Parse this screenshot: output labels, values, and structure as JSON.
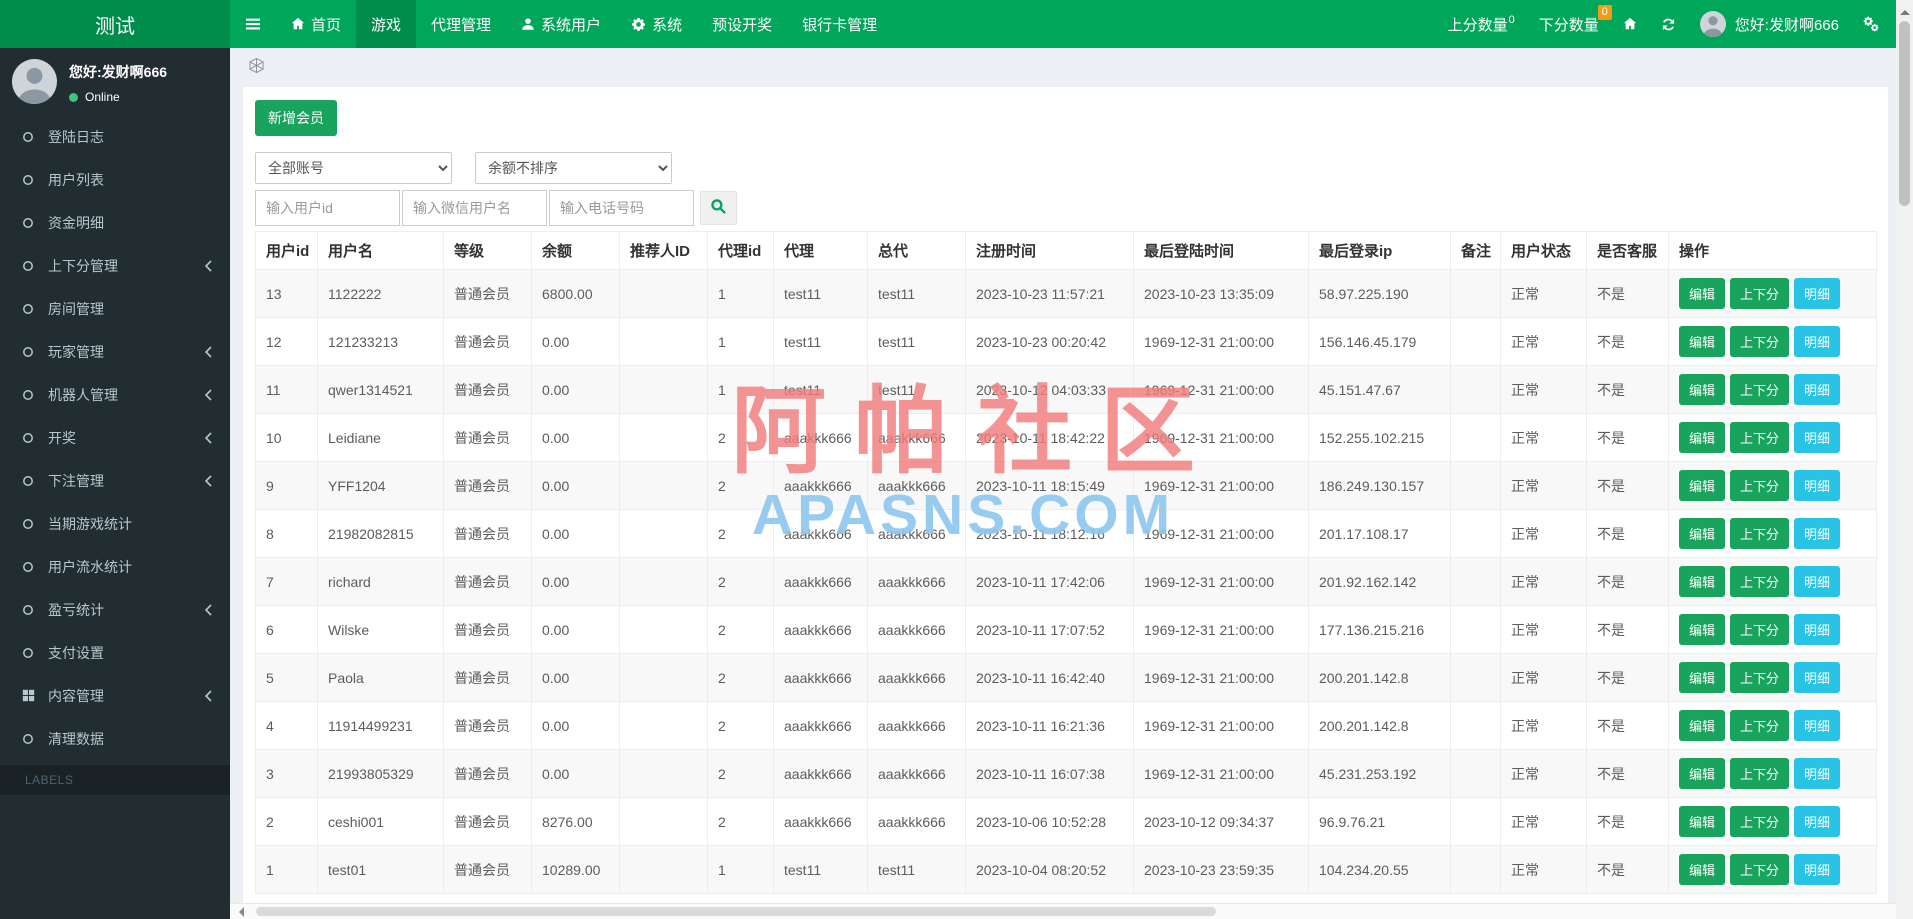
{
  "navbar": {
    "brand": "测试",
    "items": [
      {
        "name": "home",
        "label": "首页",
        "icon": "home-icon",
        "active": false
      },
      {
        "name": "games",
        "label": "游戏",
        "icon": null,
        "active": true
      },
      {
        "name": "agent-manage",
        "label": "代理管理",
        "icon": null,
        "active": false
      },
      {
        "name": "system-users",
        "label": "系统用户",
        "icon": "user-icon",
        "active": false
      },
      {
        "name": "system",
        "label": "系统",
        "icon": "gear-icon",
        "active": false
      },
      {
        "name": "preset-draw",
        "label": "预设开奖",
        "icon": null,
        "active": false
      },
      {
        "name": "bank-card-manage",
        "label": "银行卡管理",
        "icon": null,
        "active": false
      }
    ],
    "right": {
      "up_score_label": "上分数量",
      "up_score_count": "0",
      "down_score_label": "下分数量",
      "down_score_count": "0",
      "greeting": "您好:发财啊666"
    }
  },
  "sidebar": {
    "greeting": "您好:发财啊666",
    "status": "Online",
    "labels_header": "LABELS",
    "items": [
      {
        "name": "login-log",
        "label": "登陆日志",
        "icon": "circle-icon",
        "has_submenu": false
      },
      {
        "name": "user-list",
        "label": "用户列表",
        "icon": "circle-icon",
        "has_submenu": false
      },
      {
        "name": "funds-detail",
        "label": "资金明细",
        "icon": "circle-icon",
        "has_submenu": false
      },
      {
        "name": "updown-manage",
        "label": "上下分管理",
        "icon": "circle-icon",
        "has_submenu": true
      },
      {
        "name": "room-manage",
        "label": "房间管理",
        "icon": "circle-icon",
        "has_submenu": false
      },
      {
        "name": "player-manage",
        "label": "玩家管理",
        "icon": "circle-icon",
        "has_submenu": true
      },
      {
        "name": "robot-manage",
        "label": "机器人管理",
        "icon": "circle-icon",
        "has_submenu": true
      },
      {
        "name": "lottery-draw",
        "label": "开奖",
        "icon": "circle-icon",
        "has_submenu": true
      },
      {
        "name": "bet-manage",
        "label": "下注管理",
        "icon": "circle-icon",
        "has_submenu": true
      },
      {
        "name": "current-game-stats",
        "label": "当期游戏统计",
        "icon": "circle-icon",
        "has_submenu": false
      },
      {
        "name": "user-flow-stats",
        "label": "用户流水统计",
        "icon": "circle-icon",
        "has_submenu": false
      },
      {
        "name": "profit-stats",
        "label": "盈亏统计",
        "icon": "circle-icon",
        "has_submenu": true
      },
      {
        "name": "payment-settings",
        "label": "支付设置",
        "icon": "circle-icon",
        "has_submenu": false
      },
      {
        "name": "content-manage",
        "label": "内容管理",
        "icon": "grid-icon",
        "has_submenu": true
      },
      {
        "name": "clean-data",
        "label": "清理数据",
        "icon": "circle-icon",
        "has_submenu": false
      }
    ]
  },
  "toolbar": {
    "add_member_label": "新增会员",
    "account_filter_value": "全部账号",
    "balance_sort_value": "余额不排序",
    "user_id_placeholder": "输入用户id",
    "wechat_placeholder": "输入微信用户名",
    "phone_placeholder": "输入电话号码",
    "search_icon": "search-icon"
  },
  "table": {
    "columns": [
      "用户id",
      "用户名",
      "等级",
      "余额",
      "推荐人ID",
      "代理id",
      "代理",
      "总代",
      "注册时间",
      "最后登陆时间",
      "最后登录ip",
      "备注",
      "用户状态",
      "是否客服",
      "操作"
    ],
    "action_labels": {
      "edit": "编辑",
      "updown": "上下分",
      "detail": "明细"
    },
    "rows": [
      [
        "13",
        "1122222",
        "普通会员",
        "6800.00",
        "",
        "1",
        "test11",
        "test11",
        "2023-10-23 11:57:21",
        "2023-10-23 13:35:09",
        "58.97.225.190",
        "",
        "正常",
        "不是"
      ],
      [
        "12",
        "121233213",
        "普通会员",
        "0.00",
        "",
        "1",
        "test11",
        "test11",
        "2023-10-23 00:20:42",
        "1969-12-31 21:00:00",
        "156.146.45.179",
        "",
        "正常",
        "不是"
      ],
      [
        "11",
        "qwer1314521",
        "普通会员",
        "0.00",
        "",
        "1",
        "test11",
        "test11",
        "2023-10-12 04:03:33",
        "1969-12-31 21:00:00",
        "45.151.47.67",
        "",
        "正常",
        "不是"
      ],
      [
        "10",
        "Leidiane",
        "普通会员",
        "0.00",
        "",
        "2",
        "aaakkk666",
        "aaakkk666",
        "2023-10-11 18:42:22",
        "1969-12-31 21:00:00",
        "152.255.102.215",
        "",
        "正常",
        "不是"
      ],
      [
        "9",
        "YFF1204",
        "普通会员",
        "0.00",
        "",
        "2",
        "aaakkk666",
        "aaakkk666",
        "2023-10-11 18:15:49",
        "1969-12-31 21:00:00",
        "186.249.130.157",
        "",
        "正常",
        "不是"
      ],
      [
        "8",
        "21982082815",
        "普通会员",
        "0.00",
        "",
        "2",
        "aaakkk666",
        "aaakkk666",
        "2023-10-11 18:12:16",
        "1969-12-31 21:00:00",
        "201.17.108.17",
        "",
        "正常",
        "不是"
      ],
      [
        "7",
        "richard",
        "普通会员",
        "0.00",
        "",
        "2",
        "aaakkk666",
        "aaakkk666",
        "2023-10-11 17:42:06",
        "1969-12-31 21:00:00",
        "201.92.162.142",
        "",
        "正常",
        "不是"
      ],
      [
        "6",
        "Wilske",
        "普通会员",
        "0.00",
        "",
        "2",
        "aaakkk666",
        "aaakkk666",
        "2023-10-11 17:07:52",
        "1969-12-31 21:00:00",
        "177.136.215.216",
        "",
        "正常",
        "不是"
      ],
      [
        "5",
        "Paola",
        "普通会员",
        "0.00",
        "",
        "2",
        "aaakkk666",
        "aaakkk666",
        "2023-10-11 16:42:40",
        "1969-12-31 21:00:00",
        "200.201.142.8",
        "",
        "正常",
        "不是"
      ],
      [
        "4",
        "11914499231",
        "普通会员",
        "0.00",
        "",
        "2",
        "aaakkk666",
        "aaakkk666",
        "2023-10-11 16:21:36",
        "1969-12-31 21:00:00",
        "200.201.142.8",
        "",
        "正常",
        "不是"
      ],
      [
        "3",
        "21993805329",
        "普通会员",
        "0.00",
        "",
        "2",
        "aaakkk666",
        "aaakkk666",
        "2023-10-11 16:07:38",
        "1969-12-31 21:00:00",
        "45.231.253.192",
        "",
        "正常",
        "不是"
      ],
      [
        "2",
        "ceshi001",
        "普通会员",
        "8276.00",
        "",
        "2",
        "aaakkk666",
        "aaakkk666",
        "2023-10-06 10:52:28",
        "2023-10-12 09:34:37",
        "96.9.76.21",
        "",
        "正常",
        "不是"
      ],
      [
        "1",
        "test01",
        "普通会员",
        "10289.00",
        "",
        "1",
        "test11",
        "test11",
        "2023-10-04 08:20:52",
        "2023-10-23 23:59:35",
        "104.234.20.55",
        "",
        "正常",
        "不是"
      ]
    ]
  },
  "watermark": {
    "line1": "阿帕社区",
    "line2": "APASNS.COM"
  },
  "colors": {
    "navbar_green": "#00a65a",
    "brand_green": "#008d4c",
    "sidebar_dark": "#222d32",
    "badge_orange": "#f39c12",
    "button_green": "#18a45c",
    "button_cyan": "#29c3e6",
    "watermark_red": "#f07b7b",
    "watermark_blue": "#8cc7ee"
  }
}
